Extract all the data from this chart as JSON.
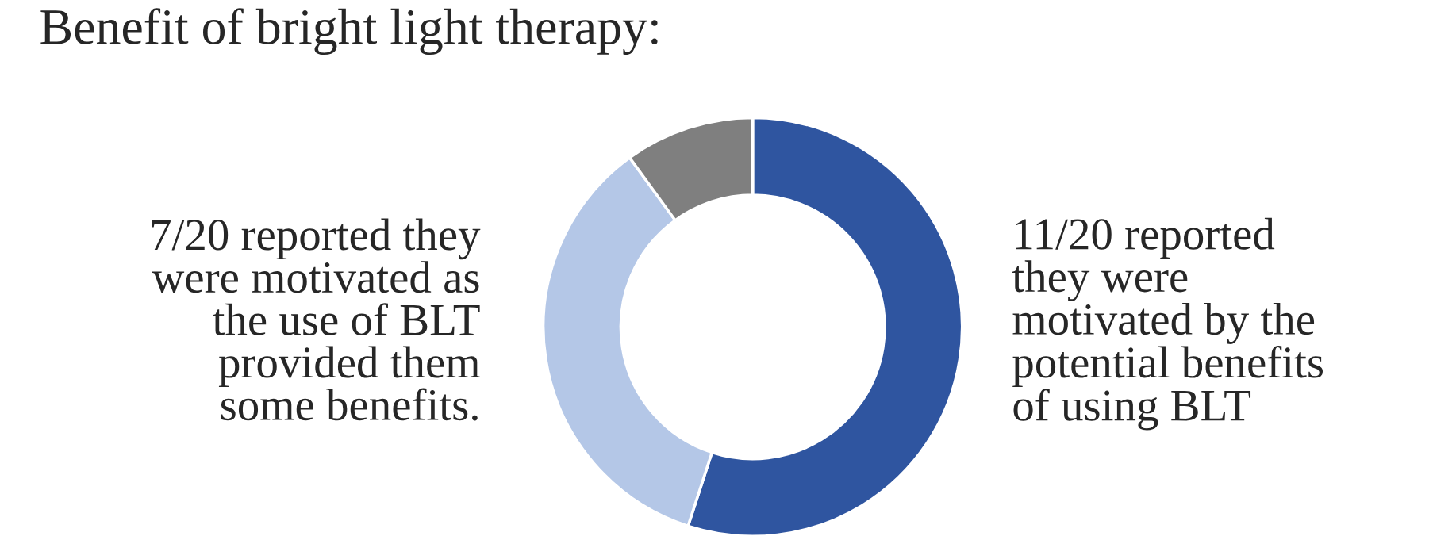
{
  "chart_data": {
    "type": "donut",
    "title": "Benefit of bright light therapy:",
    "categories": [
      null,
      null,
      null
    ],
    "values": [
      55,
      35,
      10
    ],
    "colors": [
      "#2f55a0",
      "#b4c7e7",
      "#7f7f7f"
    ],
    "annotations": [
      "7/20 reported they\nwere motivated as\nthe use of BLT\nprovided them\nsome benefits.",
      "11/20 reported\nthey were\nmotivated by the\npotential benefits\nof using BLT"
    ]
  }
}
